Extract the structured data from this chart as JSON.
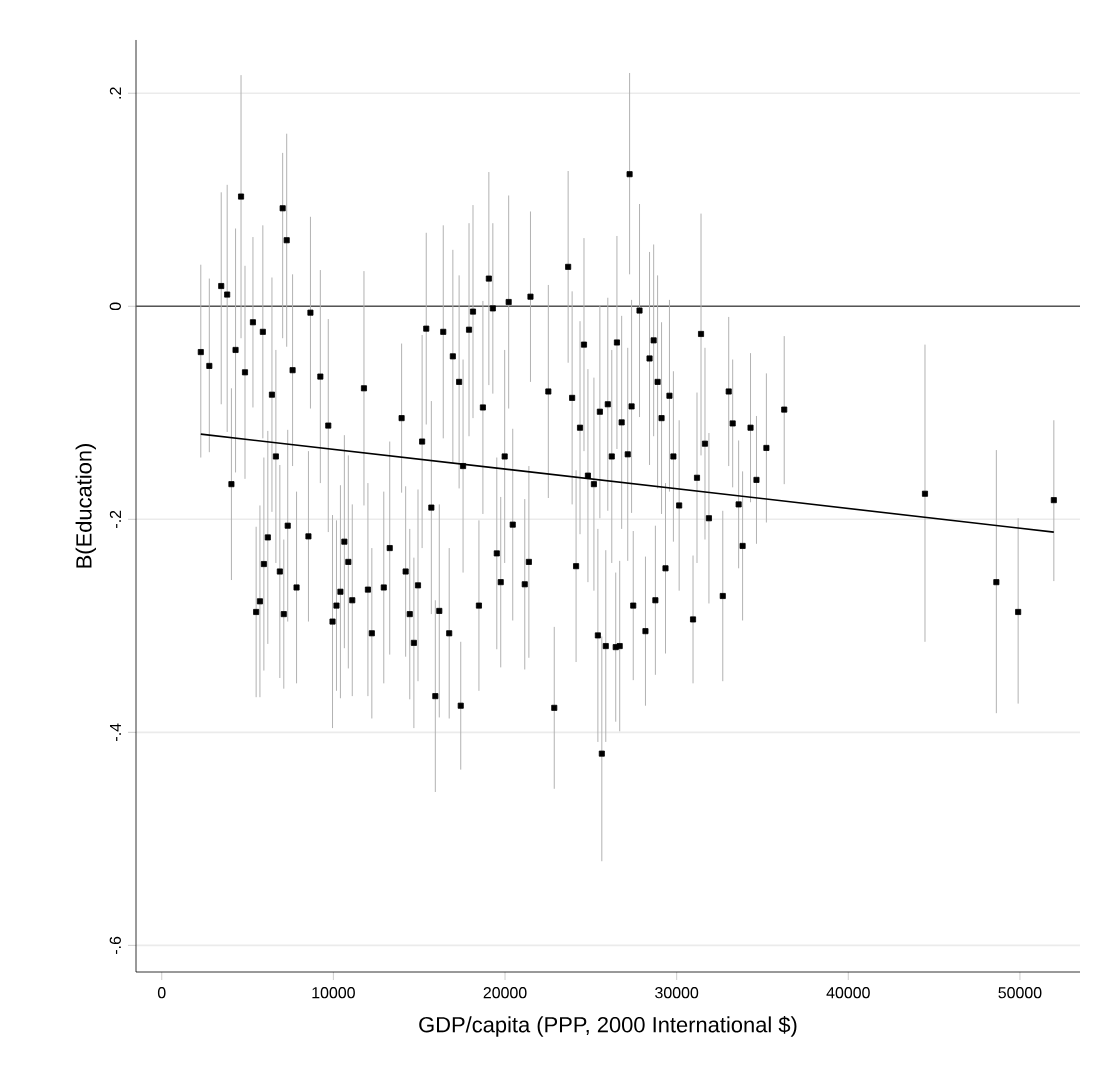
{
  "chart_data": {
    "type": "scatter",
    "xlabel": "GDP/capita (PPP, 2000 International $)",
    "ylabel": "B(Education)",
    "xlim": [
      -1500,
      53500
    ],
    "ylim": [
      -0.625,
      0.25
    ],
    "xticks": [
      0,
      10000,
      20000,
      30000,
      40000,
      50000
    ],
    "yticks": [
      {
        "value": -0.6,
        "label": "-.6"
      },
      {
        "value": -0.4,
        "label": "-.4"
      },
      {
        "value": -0.2,
        "label": "-.2"
      },
      {
        "value": 0,
        "label": "0"
      },
      {
        "value": 0.2,
        "label": ".2"
      }
    ],
    "grid": "y",
    "ref_lines": [
      {
        "axis": "y",
        "value": 0,
        "color": "#555555"
      }
    ],
    "series": [
      {
        "color": "#000000",
        "marker": "square",
        "x": [
          2275,
          2772,
          3465,
          3812,
          4060,
          4300,
          4620,
          4850,
          5313,
          5500,
          5720,
          5890,
          5950,
          6180,
          6420,
          6650,
          6880,
          7045,
          7110,
          7280,
          7340,
          7623,
          7854,
          8547,
          8663,
          9240,
          9702,
          9950,
          10180,
          10410,
          10640,
          10870,
          11100,
          11781,
          12012,
          12240,
          12936,
          13283,
          13975,
          14210,
          14450,
          14690,
          14930,
          15170,
          15410,
          15708,
          15939,
          16170,
          16401,
          16748,
          16960,
          17325,
          17420,
          17556,
          17903,
          18134,
          18480,
          18711,
          19058,
          19290,
          19520,
          19750,
          19980,
          20213,
          20450,
          21150,
          21390,
          21483,
          22523,
          22869,
          23678,
          23910,
          24140,
          24370,
          24600,
          24830,
          25179,
          25410,
          25526,
          25640,
          25988,
          25870,
          26220,
          26450,
          26520,
          26681,
          26796,
          27150,
          27258,
          27470,
          27374,
          27836,
          28182,
          28420,
          28660,
          28760,
          28890,
          29120,
          29350,
          29580,
          29810,
          30146,
          30954,
          31185,
          31420,
          31650,
          31880,
          32687,
          33033,
          33264,
          33611,
          33842,
          34304,
          34650,
          35228,
          36267,
          44468,
          48626,
          49896,
          51975
        ],
        "values": [
          -0.043,
          -0.056,
          0.019,
          0.011,
          -0.167,
          -0.041,
          0.103,
          -0.062,
          -0.015,
          -0.287,
          -0.277,
          -0.024,
          -0.242,
          -0.217,
          -0.083,
          -0.141,
          -0.249,
          0.092,
          -0.289,
          0.062,
          -0.206,
          -0.06,
          -0.264,
          -0.216,
          -0.006,
          -0.066,
          -0.112,
          -0.296,
          -0.281,
          -0.268,
          -0.221,
          -0.24,
          -0.276,
          -0.077,
          -0.266,
          -0.307,
          -0.264,
          -0.227,
          -0.105,
          -0.249,
          -0.289,
          -0.316,
          -0.262,
          -0.127,
          -0.021,
          -0.189,
          -0.366,
          -0.286,
          -0.024,
          -0.307,
          -0.047,
          -0.071,
          -0.375,
          -0.15,
          -0.022,
          -0.005,
          -0.281,
          -0.095,
          0.026,
          -0.002,
          -0.232,
          -0.259,
          -0.141,
          0.004,
          -0.205,
          -0.261,
          -0.24,
          0.009,
          -0.08,
          -0.377,
          0.037,
          -0.086,
          -0.244,
          -0.114,
          -0.036,
          -0.159,
          -0.167,
          -0.309,
          -0.099,
          -0.42,
          -0.092,
          -0.319,
          -0.141,
          -0.32,
          -0.034,
          -0.319,
          -0.109,
          -0.139,
          0.124,
          -0.281,
          -0.094,
          -0.004,
          -0.305,
          -0.049,
          -0.032,
          -0.276,
          -0.071,
          -0.105,
          -0.246,
          -0.084,
          -0.141,
          -0.187,
          -0.294,
          -0.161,
          -0.026,
          -0.129,
          -0.199,
          -0.272,
          -0.08,
          -0.11,
          -0.186,
          -0.225,
          -0.114,
          -0.163,
          -0.133,
          -0.097,
          -0.176,
          -0.259,
          -0.287,
          -0.182
        ],
        "errors": [
          [
            -0.142,
            0.039
          ],
          [
            -0.137,
            0.026
          ],
          [
            -0.092,
            0.107
          ],
          [
            -0.118,
            0.114
          ],
          0.09,
          [
            -0.156,
            0.073
          ],
          [
            -0.03,
            0.217
          ],
          0.1,
          0.08,
          0.08,
          0.09,
          0.1,
          0.1,
          0.1,
          0.11,
          0.1,
          0.1,
          [
            -0.03,
            0.144
          ],
          0.07,
          0.1,
          0.09,
          0.09,
          0.09,
          0.08,
          0.09,
          0.1,
          0.1,
          0.1,
          0.08,
          0.1,
          0.1,
          0.1,
          0.09,
          0.11,
          0.1,
          0.08,
          0.09,
          0.1,
          0.07,
          0.08,
          0.08,
          0.08,
          0.09,
          0.1,
          0.09,
          0.1,
          0.09,
          0.1,
          0.1,
          0.08,
          0.1,
          0.1,
          0.06,
          0.1,
          0.1,
          0.1,
          0.08,
          0.1,
          0.1,
          0.08,
          0.09,
          0.08,
          0.1,
          0.1,
          0.09,
          0.08,
          0.09,
          0.08,
          0.1,
          0.076,
          0.09,
          0.1,
          0.09,
          0.1,
          0.1,
          0.1,
          0.1,
          0.1,
          0.1,
          [
            -0.521,
            -0.31
          ],
          0.1,
          0.09,
          0.1,
          0.07,
          0.1,
          0.08,
          0.1,
          0.1,
          [
            0.03,
            0.219
          ],
          0.07,
          0.1,
          0.1,
          0.07,
          0.1,
          0.09,
          0.07,
          0.1,
          0.09,
          0.08,
          0.09,
          0.08,
          0.08,
          0.06,
          0.08,
          [
            -0.14,
            0.087
          ],
          0.09,
          0.08,
          0.08,
          0.07,
          0.06,
          0.06,
          0.07,
          0.07,
          0.06,
          0.07,
          [
            -0.167,
            -0.028
          ],
          [
            -0.315,
            -0.036
          ],
          [
            -0.382,
            -0.135
          ],
          [
            -0.373,
            -0.199
          ],
          [
            -0.258,
            -0.107
          ]
        ]
      },
      {
        "type": "line",
        "color": "#000000",
        "x": [
          2275,
          51975
        ],
        "values": [
          -0.12,
          -0.212
        ]
      }
    ]
  }
}
